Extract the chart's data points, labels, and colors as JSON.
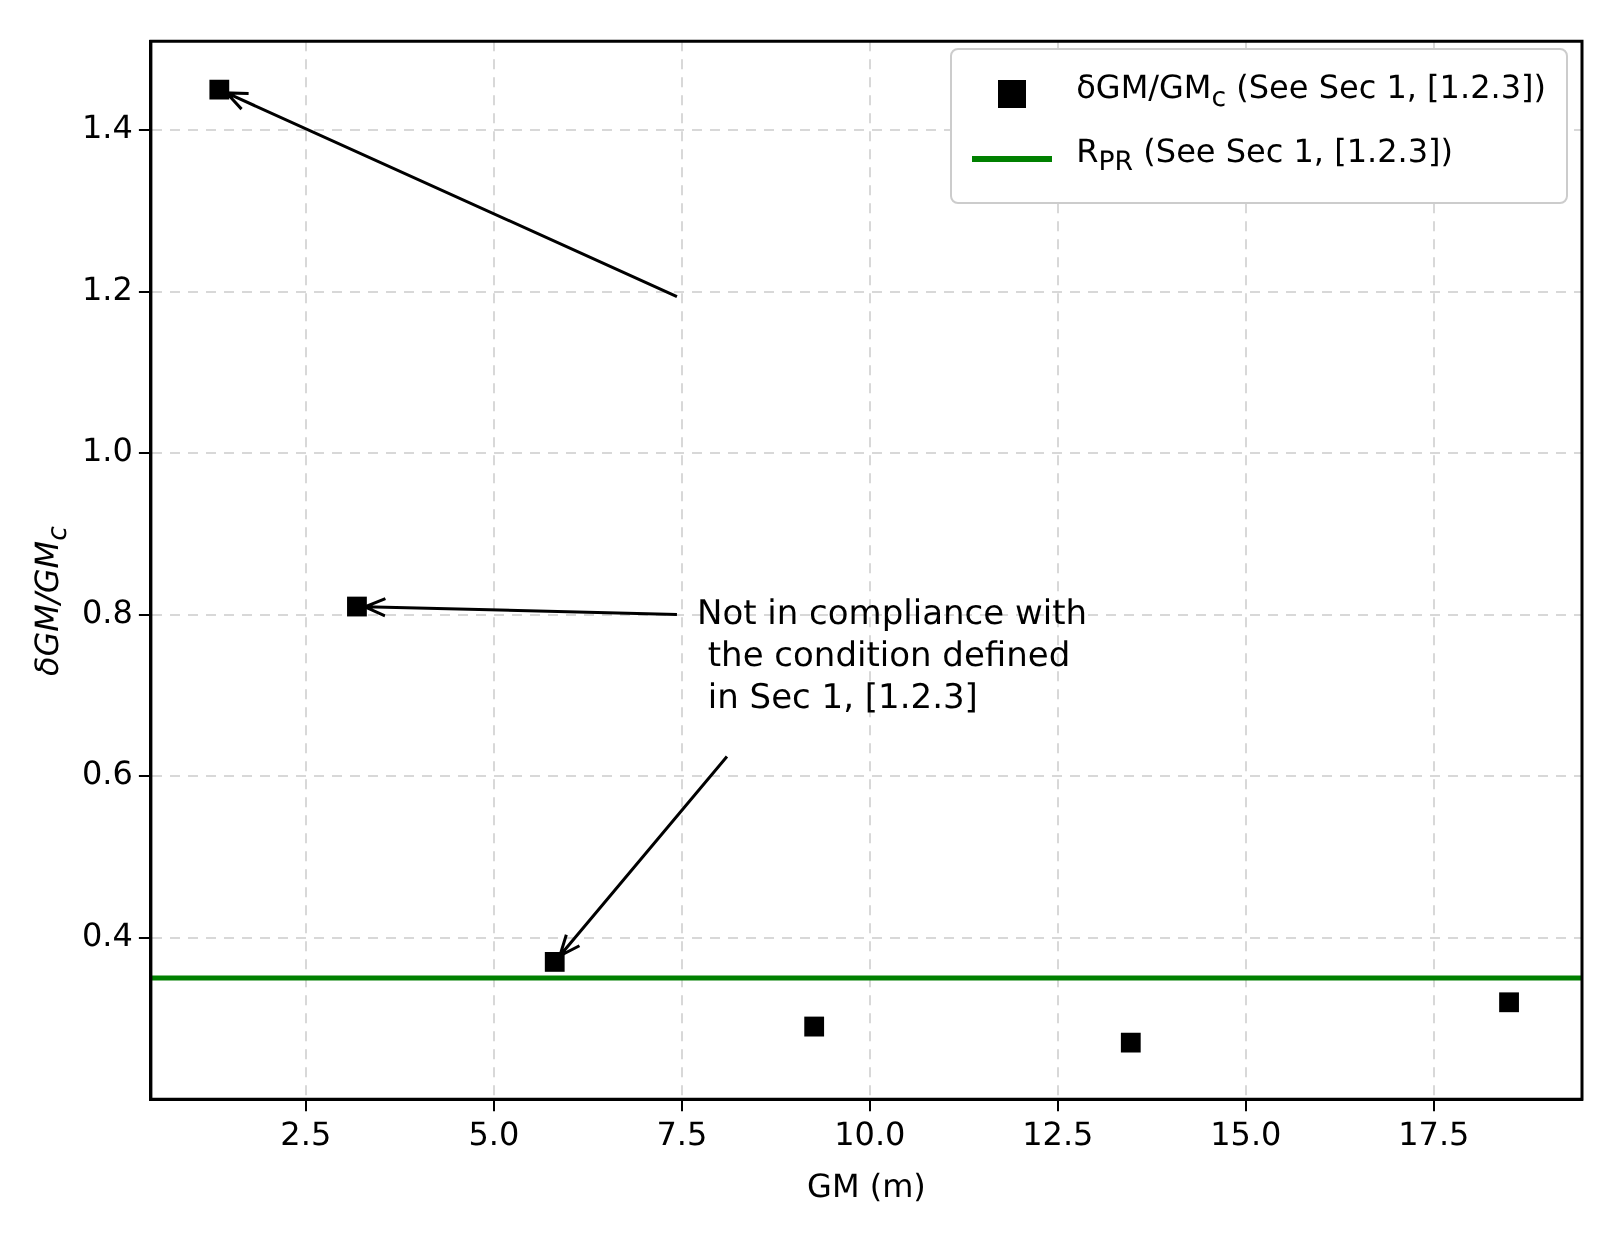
{
  "chart_data": {
    "type": "scatter",
    "xlabel": "GM (m)",
    "ylabel": "δGM/GM$_{c}$",
    "x": [
      1.35,
      3.18,
      5.81,
      9.26,
      13.47,
      18.5
    ],
    "series": [
      {
        "name": "δGM/GM$_{c}$ (See Sec 1, [1.2.3])",
        "color": "#000000",
        "values": [
          1.45,
          0.81,
          0.37,
          0.29,
          0.27,
          0.32
        ]
      }
    ],
    "ref_lines": [
      {
        "axis": "y",
        "value": 0.35,
        "label": "R$_{PR}$ (See Sec 1, [1.2.3])",
        "color": "#008000",
        "line_style": "solid"
      }
    ],
    "annotations": [
      {
        "text": "Not in compliance with\n the condition defined\n in Sec 1, [1.2.3]",
        "x": 3.18,
        "y": 0.81
      }
    ],
    "xlim": [
      0.44,
      19.47
    ],
    "ylim": [
      0.2,
      1.51
    ],
    "xticks": [
      {
        "value": 2.5,
        "label": "2.5"
      },
      {
        "value": 5,
        "label": "5.0"
      },
      {
        "value": 7.5,
        "label": "7.5"
      },
      {
        "value": 10,
        "label": "10.0"
      },
      {
        "value": 12.5,
        "label": "12.5"
      },
      {
        "value": 15,
        "label": "15.0"
      },
      {
        "value": 17.5,
        "label": "17.5"
      }
    ],
    "yticks": [
      {
        "value": 0.4,
        "label": "0.4"
      },
      {
        "value": 0.6,
        "label": "0.6"
      },
      {
        "value": 0.8,
        "label": "0.8"
      },
      {
        "value": 1,
        "label": "1.0"
      },
      {
        "value": 1.2,
        "label": "1.2"
      },
      {
        "value": 1.4,
        "label": "1.4"
      }
    ],
    "grid": true,
    "legend": "top right",
    "marker": "square"
  }
}
